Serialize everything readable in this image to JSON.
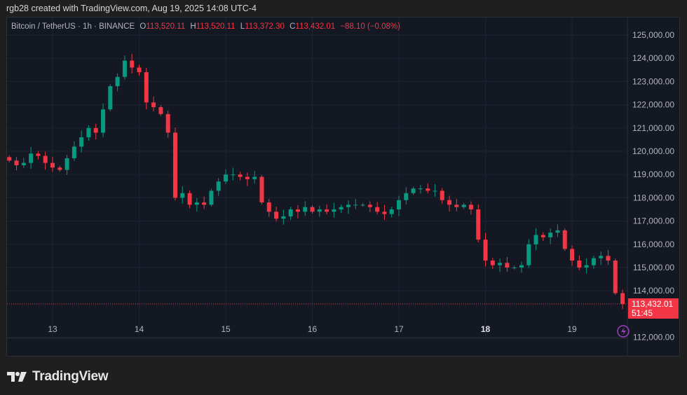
{
  "credit": "rgb28 created with TradingView.com, Aug 19, 2025 14:08 UTC-4",
  "legend": {
    "symbol": "Bitcoin / TetherUS · 1h · BINANCE",
    "o_label": "O",
    "o": "113,520.11",
    "h_label": "H",
    "h": "113,520.11",
    "l_label": "L",
    "l": "113,372.30",
    "c_label": "C",
    "c": "113,432.01",
    "change": "−88.10 (−0.08%)"
  },
  "last_price": {
    "price": "113,432.01",
    "countdown": "51:45"
  },
  "brand": "TradingView",
  "colors": {
    "up": "#089981",
    "down": "#f23645",
    "background": "#141823",
    "grid": "#1f2332",
    "lightning": "#9c3fc2"
  },
  "chart_data": {
    "type": "candlestick",
    "interval": "1h",
    "ylim": [
      111500,
      125700
    ],
    "y_ticks": [
      112000,
      114000,
      115000,
      116000,
      117000,
      118000,
      119000,
      120000,
      121000,
      122000,
      123000,
      124000,
      125000
    ],
    "y_tick_labels": [
      "112,000.00",
      "114,000.00",
      "115,000.00",
      "116,000.00",
      "117,000.00",
      "118,000.00",
      "119,000.00",
      "120,000.00",
      "121,000.00",
      "122,000.00",
      "123,000.00",
      "124,000.00",
      "125,000.00"
    ],
    "x_ticks": [
      {
        "day": 13,
        "label": "13"
      },
      {
        "day": 14,
        "label": "14"
      },
      {
        "day": 15,
        "label": "15"
      },
      {
        "day": 16,
        "label": "16"
      },
      {
        "day": 17,
        "label": "17"
      },
      {
        "day": 18,
        "label": "18",
        "bold": true
      },
      {
        "day": 19,
        "label": "19"
      }
    ],
    "start": "Aug 12 12:00",
    "step_hours": 2,
    "closes": [
      119600,
      119400,
      119500,
      119900,
      119800,
      119500,
      119300,
      119200,
      119700,
      120200,
      120600,
      121000,
      120800,
      121800,
      122800,
      123200,
      123900,
      123600,
      123400,
      122100,
      121900,
      121600,
      120800,
      118000,
      118200,
      117700,
      117800,
      117700,
      118300,
      118700,
      119000,
      119000,
      118900,
      118800,
      118900,
      117800,
      117400,
      117100,
      117200,
      117500,
      117400,
      117600,
      117400,
      117500,
      117400,
      117500,
      117600,
      117700,
      117700,
      117700,
      117600,
      117400,
      117300,
      117500,
      117900,
      118200,
      118400,
      118400,
      118300,
      118300,
      117900,
      117700,
      117600,
      117700,
      117500,
      116200,
      115300,
      115100,
      115200,
      115000,
      115000,
      115100,
      116000,
      116400,
      116300,
      116500,
      116600,
      115800,
      115300,
      115000,
      115100,
      115400,
      115500,
      115300,
      113900,
      113432
    ],
    "last": 113432.01
  }
}
